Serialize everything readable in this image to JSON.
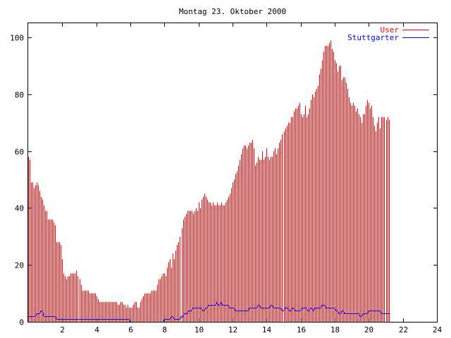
{
  "chart_data": {
    "type": "bar",
    "title": "Montag 23. Oktober 2000",
    "xlabel": "",
    "ylabel": "",
    "xlim": [
      0,
      24
    ],
    "ylim": [
      0,
      105
    ],
    "x_ticks": [
      "2",
      "4",
      "6",
      "8",
      "10",
      "12",
      "14",
      "16",
      "18",
      "20",
      "22",
      "24"
    ],
    "y_ticks": [
      "0",
      "20",
      "40",
      "60",
      "80",
      "100"
    ],
    "legend_position": "top-right",
    "grid": false,
    "interval_minutes": 5,
    "series": [
      {
        "name": "User",
        "color": "#ff0000",
        "style": "impulses",
        "values": [
          58,
          57,
          49,
          49,
          47,
          48,
          49,
          48,
          46,
          44,
          43,
          41,
          39,
          39,
          36,
          36,
          36,
          36,
          35,
          34,
          28,
          28,
          28,
          27,
          22,
          17,
          16,
          15,
          16,
          16,
          17,
          17,
          17,
          17,
          18,
          16,
          15,
          13,
          11,
          11,
          11,
          11,
          11,
          10,
          10,
          10,
          10,
          10,
          9,
          8,
          7,
          7,
          7,
          7,
          7,
          7,
          7,
          7,
          7,
          7,
          7,
          7,
          7,
          6,
          6,
          7,
          7,
          6,
          6,
          5,
          6,
          5,
          5,
          5,
          6,
          7,
          7,
          5,
          5,
          7,
          8,
          9,
          10,
          10,
          10,
          10,
          10,
          11,
          11,
          11,
          11,
          13,
          15,
          15,
          16,
          17,
          17,
          16,
          19,
          21,
          22,
          19,
          24,
          22,
          25,
          27,
          28,
          30,
          33,
          36,
          37,
          38,
          39,
          39,
          39,
          39,
          38,
          39,
          40,
          39,
          42,
          40,
          43,
          44,
          45,
          44,
          43,
          42,
          42,
          41,
          42,
          41,
          41,
          42,
          41,
          41,
          42,
          41,
          41,
          42,
          43,
          44,
          45,
          47,
          49,
          50,
          52,
          53,
          55,
          57,
          59,
          61,
          62,
          62,
          61,
          62,
          63,
          63,
          64,
          61,
          55,
          56,
          58,
          57,
          57,
          60,
          57,
          58,
          61,
          58,
          57,
          58,
          58,
          60,
          61,
          59,
          61,
          63,
          64,
          66,
          67,
          68,
          69,
          70,
          70,
          72,
          72,
          74,
          75,
          75,
          76,
          77,
          73,
          72,
          73,
          76,
          72,
          73,
          75,
          78,
          80,
          79,
          81,
          82,
          83,
          87,
          89,
          92,
          95,
          97,
          97,
          97,
          98,
          99,
          96,
          95,
          92,
          91,
          88,
          90,
          90,
          85,
          86,
          86,
          84,
          82,
          79,
          77,
          76,
          77,
          76,
          74,
          75,
          73,
          72,
          70,
          73,
          73,
          76,
          78,
          77,
          75,
          76,
          72,
          69,
          67,
          70,
          72,
          68,
          72,
          72,
          72,
          71,
          72,
          71
        ]
      },
      {
        "name": "Stuttgarter",
        "color": "#0000ff",
        "style": "line",
        "values": [
          2,
          2,
          2,
          2,
          2,
          2,
          3,
          3,
          3,
          4,
          4,
          2,
          2,
          2,
          2,
          2,
          2,
          2,
          2,
          2,
          1,
          1,
          1,
          1,
          1,
          1,
          1,
          1,
          1,
          1,
          1,
          1,
          1,
          1,
          1,
          1,
          1,
          1,
          1,
          1,
          1,
          1,
          1,
          1,
          1,
          1,
          1,
          1,
          1,
          1,
          1,
          1,
          1,
          1,
          1,
          1,
          1,
          1,
          1,
          1,
          1,
          1,
          1,
          1,
          1,
          1,
          1,
          1,
          1,
          1,
          1,
          1,
          0,
          0,
          0,
          0,
          0,
          0,
          0,
          0,
          0,
          0,
          0,
          0,
          0,
          0,
          0,
          0,
          0,
          0,
          0,
          0,
          0,
          0,
          0,
          0,
          1,
          1,
          1,
          1,
          1,
          2,
          2,
          1,
          1,
          1,
          1,
          1,
          2,
          2,
          3,
          3,
          3,
          4,
          4,
          4,
          5,
          5,
          5,
          5,
          5,
          5,
          5,
          4,
          4,
          5,
          5,
          6,
          6,
          6,
          6,
          6,
          6,
          7,
          6,
          6,
          7,
          6,
          6,
          6,
          6,
          6,
          5,
          5,
          5,
          5,
          4,
          4,
          4,
          4,
          4,
          4,
          4,
          4,
          4,
          4,
          5,
          5,
          5,
          5,
          5,
          5,
          6,
          6,
          5,
          5,
          5,
          5,
          5,
          5,
          5,
          6,
          6,
          5,
          5,
          5,
          5,
          5,
          5,
          4,
          4,
          5,
          5,
          5,
          4,
          4,
          5,
          5,
          4,
          4,
          4,
          4,
          4,
          5,
          5,
          5,
          5,
          4,
          4,
          5,
          5,
          4,
          5,
          5,
          5,
          5,
          5,
          6,
          6,
          6,
          5,
          5,
          5,
          5,
          5,
          5,
          5,
          4,
          4,
          3,
          3,
          4,
          4,
          3,
          3,
          3,
          3,
          3,
          3,
          3,
          3,
          3,
          3,
          3,
          2,
          2,
          3,
          3,
          3,
          3,
          4,
          4,
          4,
          4,
          4,
          4,
          4,
          4,
          4,
          3,
          3,
          3,
          3,
          3,
          3,
          3
        ]
      }
    ]
  }
}
